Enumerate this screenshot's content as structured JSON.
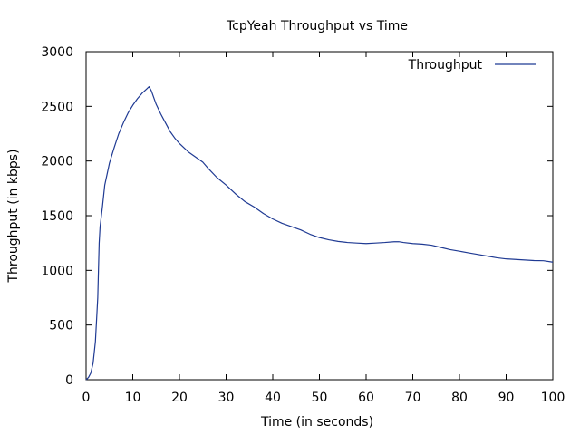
{
  "chart_data": {
    "type": "line",
    "title": "TcpYeah Throughput vs Time",
    "xlabel": "Time (in seconds)",
    "ylabel": "Throughput (in kbps)",
    "xlim": [
      0,
      100
    ],
    "ylim": [
      0,
      3000
    ],
    "x_ticks": [
      "0",
      "10",
      "20",
      "30",
      "40",
      "50",
      "60",
      "70",
      "80",
      "90",
      "100"
    ],
    "y_ticks": [
      "0",
      "500",
      "1000",
      "1500",
      "2000",
      "2500",
      "3000"
    ],
    "grid": false,
    "legend_position": "top-right",
    "series": [
      {
        "name": "Throughput",
        "color": "#1f3a93",
        "x": [
          0,
          0.5,
          1,
          1.5,
          2,
          2.5,
          2.8,
          3,
          3.5,
          4,
          5,
          6,
          7,
          8,
          9,
          10,
          11,
          12,
          13,
          13.5,
          14,
          15,
          16,
          17,
          18,
          19,
          20,
          21,
          22,
          23,
          24,
          25,
          26,
          28,
          30,
          32,
          34,
          36,
          38,
          40,
          42,
          44,
          46,
          48,
          50,
          52,
          54,
          56,
          58,
          60,
          62,
          64,
          66,
          67,
          68,
          70,
          72,
          74,
          76,
          78,
          80,
          82,
          84,
          86,
          88,
          90,
          92,
          94,
          96,
          98,
          100
        ],
        "y": [
          0,
          20,
          60,
          150,
          350,
          750,
          1250,
          1400,
          1580,
          1780,
          1980,
          2120,
          2250,
          2350,
          2440,
          2510,
          2570,
          2620,
          2660,
          2680,
          2640,
          2520,
          2430,
          2350,
          2270,
          2210,
          2160,
          2120,
          2080,
          2050,
          2020,
          1990,
          1940,
          1850,
          1780,
          1700,
          1630,
          1580,
          1520,
          1470,
          1430,
          1400,
          1370,
          1330,
          1300,
          1280,
          1265,
          1255,
          1250,
          1245,
          1250,
          1255,
          1262,
          1262,
          1255,
          1245,
          1240,
          1230,
          1210,
          1190,
          1175,
          1160,
          1145,
          1130,
          1115,
          1105,
          1100,
          1095,
          1090,
          1088,
          1075
        ]
      }
    ]
  }
}
